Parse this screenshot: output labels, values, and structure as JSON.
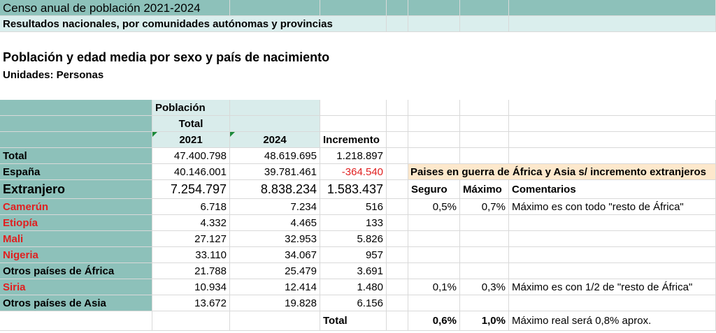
{
  "header": {
    "title": "Censo anual de población 2021-2024",
    "subtitle": "Resultados nacionales, por comunidades autónomas y provincias",
    "table_title": "Población y edad media por sexo y país de nacimiento",
    "units": "Unidades: Personas"
  },
  "table": {
    "header_poblacion": "Población",
    "header_total": "Total",
    "col_2021": "2021",
    "col_2024": "2024",
    "col_incremento": "Incremento",
    "rows": [
      {
        "label": "Total",
        "v2021": "47.400.798",
        "v2024": "48.619.695",
        "inc": "1.218.897"
      },
      {
        "label": "España",
        "v2021": "40.146.001",
        "v2024": "39.781.461",
        "inc": "-364.540"
      },
      {
        "label": "Extranjero",
        "v2021": "7.254.797",
        "v2024": "8.838.234",
        "inc": "1.583.437"
      },
      {
        "label": "Camerún",
        "v2021": "6.718",
        "v2024": "7.234",
        "inc": "516"
      },
      {
        "label": "Etiopía",
        "v2021": "4.332",
        "v2024": "4.465",
        "inc": "133"
      },
      {
        "label": "Mali",
        "v2021": "27.127",
        "v2024": "32.953",
        "inc": "5.826"
      },
      {
        "label": "Nigeria",
        "v2021": "33.110",
        "v2024": "34.067",
        "inc": "957"
      },
      {
        "label": "Otros países de África",
        "v2021": "21.788",
        "v2024": "25.479",
        "inc": "3.691"
      },
      {
        "label": "Siria",
        "v2021": "10.934",
        "v2024": "12.414",
        "inc": "1.480"
      },
      {
        "label": "Otros países de Asia",
        "v2021": "13.672",
        "v2024": "19.828",
        "inc": "6.156"
      }
    ],
    "total_label": "Total"
  },
  "side": {
    "heading": "Paises en guerra de África y Asia s/ incremento extranjeros",
    "col_seguro": "Seguro",
    "col_maximo": "Máximo",
    "col_comentarios": "Comentarios",
    "camerun_seguro": "0,5%",
    "camerun_maximo": "0,7%",
    "camerun_comment": "Máximo es con todo \"resto de África\"",
    "siria_seguro": "0,1%",
    "siria_maximo": "0,3%",
    "siria_comment": "Máximo es con 1/2 de \"resto de África\"",
    "total_seguro": "0,6%",
    "total_maximo": "1,0%",
    "total_comment": "Máximo real será 0,8% aprox."
  },
  "colors": {
    "teal": "#8dc1ba",
    "teal_light": "#d9eceb",
    "peach": "#fde8cc",
    "red_text": "#e02020"
  }
}
